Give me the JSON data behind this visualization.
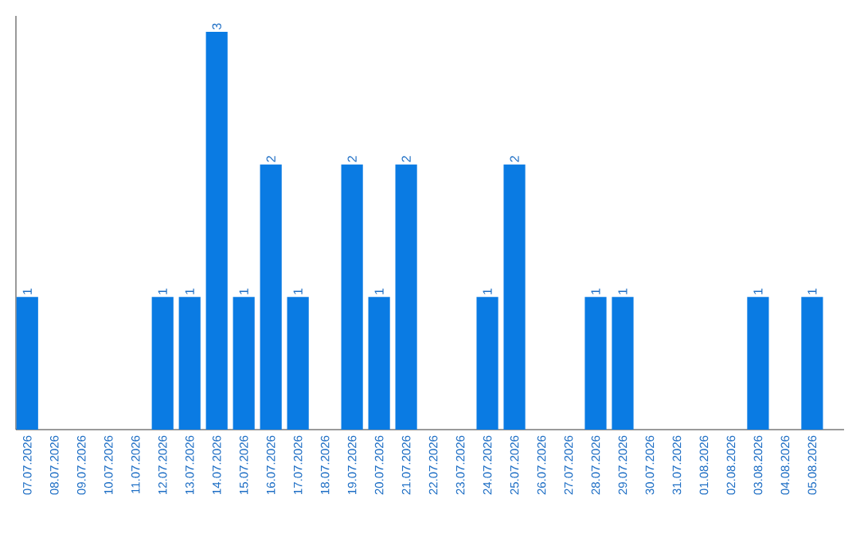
{
  "chart_data": {
    "type": "bar",
    "categories": [
      "07.07.2026",
      "08.07.2026",
      "09.07.2026",
      "10.07.2026",
      "11.07.2026",
      "12.07.2026",
      "13.07.2026",
      "14.07.2026",
      "15.07.2026",
      "16.07.2026",
      "17.07.2026",
      "18.07.2026",
      "19.07.2026",
      "20.07.2026",
      "21.07.2026",
      "22.07.2026",
      "23.07.2026",
      "24.07.2026",
      "25.07.2026",
      "26.07.2026",
      "27.07.2026",
      "28.07.2026",
      "29.07.2026",
      "30.07.2026",
      "31.07.2026",
      "01.08.2026",
      "02.08.2026",
      "03.08.2026",
      "04.08.2026",
      "05.08.2026"
    ],
    "values": [
      1,
      0,
      0,
      0,
      0,
      1,
      1,
      3,
      1,
      2,
      1,
      0,
      2,
      1,
      2,
      0,
      0,
      1,
      2,
      0,
      0,
      1,
      1,
      0,
      0,
      0,
      0,
      1,
      0,
      1
    ],
    "color": "#0a7be3",
    "ylim": [
      0,
      3.12
    ],
    "tick_labels": "x",
    "value_labels": [
      "1",
      null,
      null,
      null,
      null,
      "1",
      "1",
      "3",
      "1",
      "2",
      "1",
      null,
      "2",
      "1",
      "2",
      null,
      null,
      "1",
      "2",
      null,
      null,
      "1",
      "1",
      null,
      null,
      null,
      null,
      "1",
      null,
      "1"
    ]
  }
}
